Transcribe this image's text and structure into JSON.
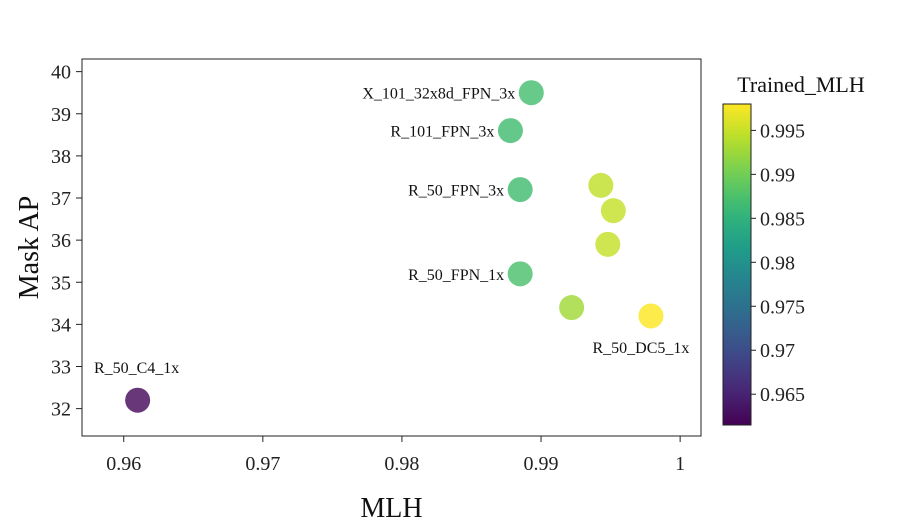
{
  "chart_data": {
    "type": "scatter",
    "xlabel": "MLH",
    "ylabel": "Mask AP",
    "xlim": [
      0.957,
      1.0015
    ],
    "ylim": [
      31.35,
      40.3
    ],
    "xticks": [
      0.96,
      0.97,
      0.98,
      0.99,
      1
    ],
    "xtick_labels": [
      "0.96",
      "0.97",
      "0.98",
      "0.99",
      "1"
    ],
    "yticks": [
      32,
      33,
      34,
      35,
      36,
      37,
      38,
      39,
      40
    ],
    "points": [
      {
        "x": 0.9893,
        "y": 39.5,
        "c": 0.987,
        "label": "X_101_32x8d_FPN_3x",
        "label_pos": "left"
      },
      {
        "x": 0.9878,
        "y": 38.6,
        "c": 0.9868,
        "label": "R_101_FPN_3x",
        "label_pos": "left"
      },
      {
        "x": 0.9885,
        "y": 37.2,
        "c": 0.9868,
        "label": "R_50_FPN_3x",
        "label_pos": "left"
      },
      {
        "x": 0.9885,
        "y": 35.2,
        "c": 0.9874,
        "label": "R_50_FPN_1x",
        "label_pos": "left"
      },
      {
        "x": 0.9943,
        "y": 37.3,
        "c": 0.9945,
        "label": "",
        "label_pos": "none"
      },
      {
        "x": 0.9952,
        "y": 36.7,
        "c": 0.9948,
        "label": "",
        "label_pos": "none"
      },
      {
        "x": 0.9948,
        "y": 35.9,
        "c": 0.9948,
        "label": "",
        "label_pos": "none"
      },
      {
        "x": 0.9922,
        "y": 34.4,
        "c": 0.9928,
        "label": "",
        "label_pos": "none"
      },
      {
        "x": 0.9979,
        "y": 34.2,
        "c": 0.998,
        "label": "R_50_DC5_1x",
        "label_pos": "below"
      },
      {
        "x": 0.961,
        "y": 32.2,
        "c": 0.9625,
        "label": "R_50_C4_1x",
        "label_pos": "above"
      }
    ],
    "colorbar": {
      "title": "Trained_MLH",
      "min": 0.9615,
      "max": 0.998,
      "ticks": [
        0.965,
        0.97,
        0.975,
        0.98,
        0.985,
        0.99,
        0.995
      ],
      "tick_labels": [
        "0.965",
        "0.97",
        "0.975",
        "0.98",
        "0.985",
        "0.99",
        "0.995"
      ],
      "colormap": "viridis"
    },
    "grid": false,
    "legend": "none"
  }
}
